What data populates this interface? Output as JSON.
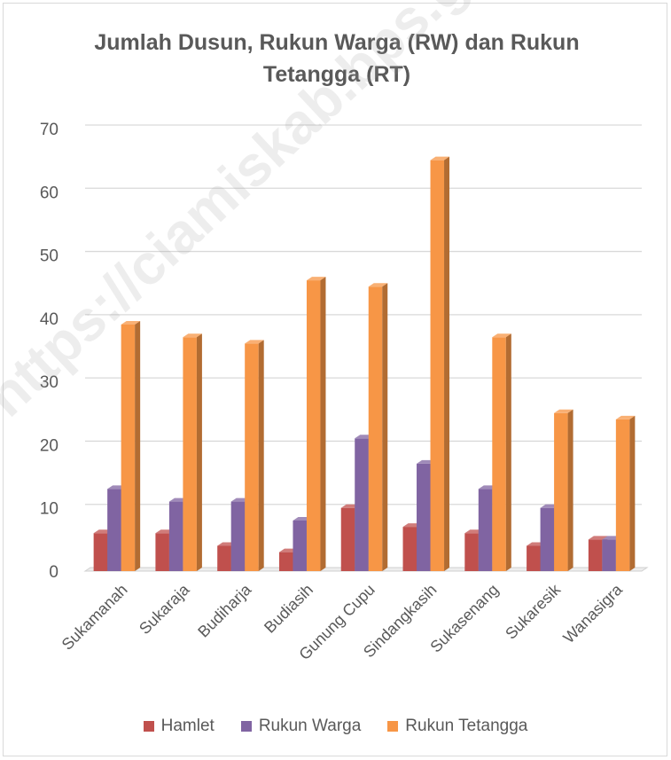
{
  "chart_data": {
    "type": "bar",
    "title": "Jumlah Dusun, Rukun Warga (RW) dan Rukun Tetangga (RT)",
    "title_lines": [
      "Jumlah Dusun, Rukun Warga (RW) dan Rukun",
      "Tetangga (RT)"
    ],
    "xlabel": "",
    "ylabel": "",
    "categories": [
      "Sukamanah",
      "Sukaraja",
      "Budiharja",
      "Budiasih",
      "Gunung Cupu",
      "Sindangkasih",
      "Sukasenang",
      "Sukaresik",
      "Wanasigra"
    ],
    "series": [
      {
        "name": "Hamlet",
        "color": "#c0504d",
        "values": [
          6,
          6,
          4,
          3,
          10,
          7,
          6,
          4,
          5
        ]
      },
      {
        "name": "Rukun Warga",
        "color": "#8064a2",
        "values": [
          13,
          11,
          11,
          8,
          21,
          17,
          13,
          10,
          5
        ]
      },
      {
        "name": "Rukun Tetangga",
        "color": "#f79646",
        "values": [
          39,
          37,
          36,
          46,
          45,
          65,
          37,
          25,
          24
        ]
      }
    ],
    "ylim": [
      0,
      70
    ],
    "yticks": [
      0,
      10,
      20,
      30,
      40,
      50,
      60,
      70
    ],
    "grid": true,
    "legend_position": "bottom",
    "style": "3d-clustered-column"
  },
  "watermark": "https://ciamiskab.bps.go.id"
}
